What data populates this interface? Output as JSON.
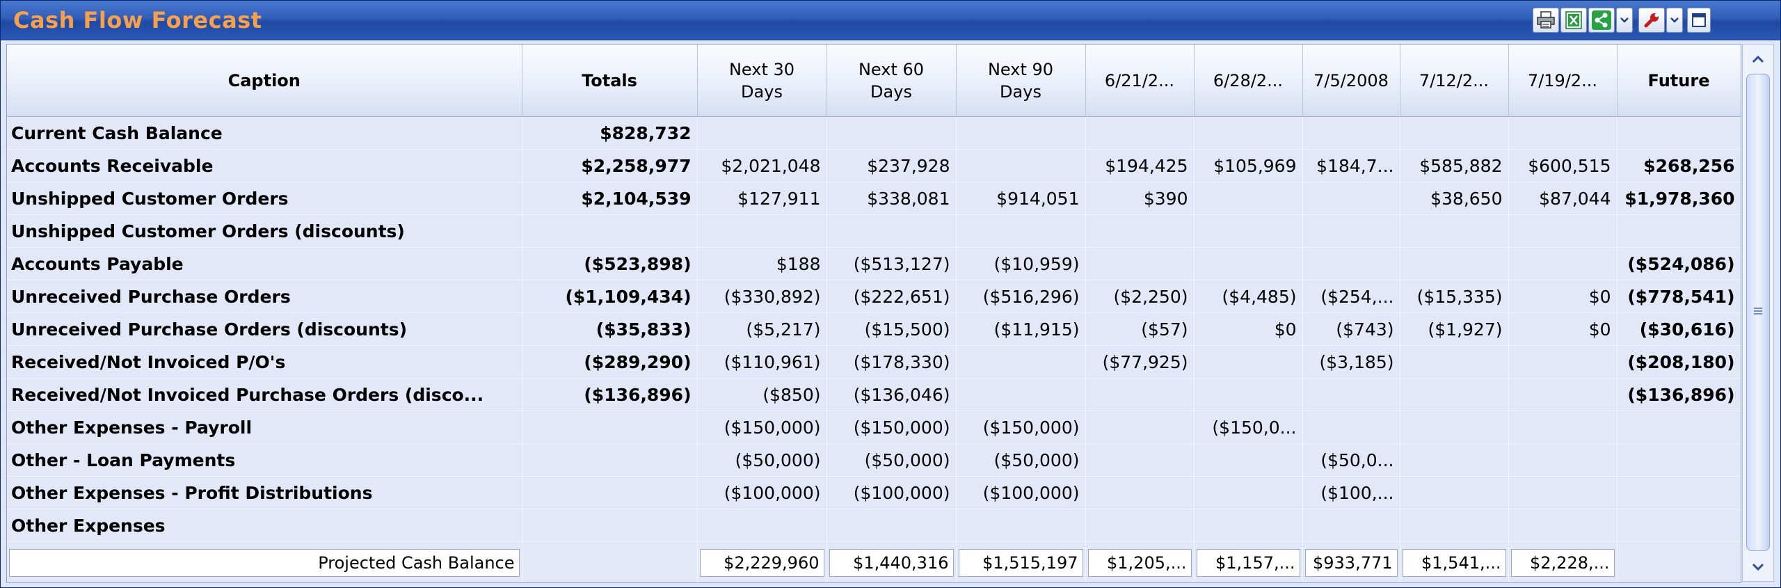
{
  "window": {
    "title": "Cash Flow Forecast"
  },
  "toolbar": {
    "icons": [
      "printer-icon",
      "excel-export-icon",
      "share-icon",
      "dropdown-arrow-icon",
      "wrench-icon",
      "dropdown-arrow-icon",
      "maximize-icon"
    ]
  },
  "columns": [
    {
      "key": "caption",
      "label": "Caption"
    },
    {
      "key": "totals",
      "label": "Totals"
    },
    {
      "key": "n30",
      "label": "Next 30 Days"
    },
    {
      "key": "n60",
      "label": "Next 60 Days"
    },
    {
      "key": "n90",
      "label": "Next 90 Days"
    },
    {
      "key": "d1",
      "label": "6/21/2..."
    },
    {
      "key": "d2",
      "label": "6/28/2..."
    },
    {
      "key": "d3",
      "label": "7/5/2008"
    },
    {
      "key": "d4",
      "label": "7/12/2..."
    },
    {
      "key": "d5",
      "label": "7/19/2..."
    },
    {
      "key": "future",
      "label": "Future"
    }
  ],
  "rows": [
    {
      "caption": "Current Cash Balance",
      "totals": "$828,732",
      "n30": "",
      "n60": "",
      "n90": "",
      "d1": "",
      "d2": "",
      "d3": "",
      "d4": "",
      "d5": "",
      "future": ""
    },
    {
      "caption": "Accounts Receivable",
      "totals": "$2,258,977",
      "n30": "$2,021,048",
      "n60": "$237,928",
      "n90": "",
      "d1": "$194,425",
      "d2": "$105,969",
      "d3": "$184,7...",
      "d4": "$585,882",
      "d5": "$600,515",
      "future": "$268,256"
    },
    {
      "caption": "Unshipped Customer Orders",
      "totals": "$2,104,539",
      "n30": "$127,911",
      "n60": "$338,081",
      "n90": "$914,051",
      "d1": "$390",
      "d2": "",
      "d3": "",
      "d4": "$38,650",
      "d5": "$87,044",
      "future": "$1,978,360"
    },
    {
      "caption": "Unshipped Customer Orders (discounts)",
      "totals": "",
      "n30": "",
      "n60": "",
      "n90": "",
      "d1": "",
      "d2": "",
      "d3": "",
      "d4": "",
      "d5": "",
      "future": ""
    },
    {
      "caption": "Accounts Payable",
      "totals": "($523,898)",
      "n30": "$188",
      "n60": "($513,127)",
      "n90": "($10,959)",
      "d1": "",
      "d2": "",
      "d3": "",
      "d4": "",
      "d5": "",
      "future": "($524,086)"
    },
    {
      "caption": "Unreceived Purchase Orders",
      "totals": "($1,109,434)",
      "n30": "($330,892)",
      "n60": "($222,651)",
      "n90": "($516,296)",
      "d1": "($2,250)",
      "d2": "($4,485)",
      "d3": "($254,...",
      "d4": "($15,335)",
      "d5": "$0",
      "future": "($778,541)"
    },
    {
      "caption": "Unreceived Purchase Orders (discounts)",
      "totals": "($35,833)",
      "n30": "($5,217)",
      "n60": "($15,500)",
      "n90": "($11,915)",
      "d1": "($57)",
      "d2": "$0",
      "d3": "($743)",
      "d4": "($1,927)",
      "d5": "$0",
      "future": "($30,616)"
    },
    {
      "caption": "Received/Not Invoiced P/O's",
      "totals": "($289,290)",
      "n30": "($110,961)",
      "n60": "($178,330)",
      "n90": "",
      "d1": "($77,925)",
      "d2": "",
      "d3": "($3,185)",
      "d4": "",
      "d5": "",
      "future": "($208,180)"
    },
    {
      "caption": "Received/Not Invoiced Purchase Orders (disco...",
      "totals": "($136,896)",
      "n30": "($850)",
      "n60": "($136,046)",
      "n90": "",
      "d1": "",
      "d2": "",
      "d3": "",
      "d4": "",
      "d5": "",
      "future": "($136,896)"
    },
    {
      "caption": "Other Expenses - Payroll",
      "totals": "",
      "n30": "($150,000)",
      "n60": "($150,000)",
      "n90": "($150,000)",
      "d1": "",
      "d2": "($150,0...",
      "d3": "",
      "d4": "",
      "d5": "",
      "future": ""
    },
    {
      "caption": "Other - Loan Payments",
      "totals": "",
      "n30": "($50,000)",
      "n60": "($50,000)",
      "n90": "($50,000)",
      "d1": "",
      "d2": "",
      "d3": "($50,0...",
      "d4": "",
      "d5": "",
      "future": ""
    },
    {
      "caption": "Other Expenses - Profit Distributions",
      "totals": "",
      "n30": "($100,000)",
      "n60": "($100,000)",
      "n90": "($100,000)",
      "d1": "",
      "d2": "",
      "d3": "($100,...",
      "d4": "",
      "d5": "",
      "future": ""
    },
    {
      "caption": "Other Expenses",
      "totals": "",
      "n30": "",
      "n60": "",
      "n90": "",
      "d1": "",
      "d2": "",
      "d3": "",
      "d4": "",
      "d5": "",
      "future": ""
    }
  ],
  "footer": {
    "caption": "Projected Cash Balance",
    "totals": "",
    "n30": "$2,229,960",
    "n60": "$1,440,316",
    "n90": "$1,515,197",
    "d1": "$1,205,...",
    "d2": "$1,157,...",
    "d3": "$933,771",
    "d4": "$1,541,...",
    "d5": "$2,228,...",
    "future": ""
  },
  "scrollbar": {
    "position_fraction": 0.0
  }
}
